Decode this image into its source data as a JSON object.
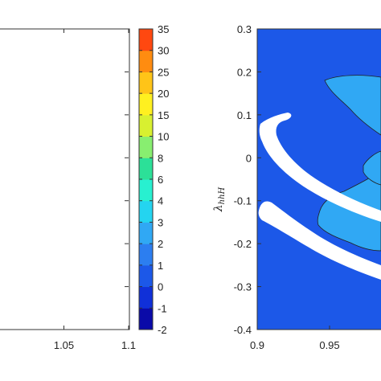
{
  "chart_data": [
    {
      "type": "heatmap",
      "panel": "left",
      "xlim": [
        1.0,
        1.1
      ],
      "x_ticks": [
        "1.05",
        "1.1"
      ],
      "x_tick_values": [
        1.05,
        1.1
      ],
      "grid": false,
      "colorbar": {
        "levels": [
          -2,
          -1,
          0,
          1,
          2,
          3,
          4,
          6,
          8,
          10,
          15,
          20,
          25,
          30,
          35
        ],
        "labels": [
          "-2",
          "-1",
          "0",
          "1",
          "2",
          "3",
          "4",
          "6",
          "8",
          "10",
          "15",
          "20",
          "25",
          "30",
          "35"
        ],
        "colors": [
          "#0a0aa8",
          "#1030d8",
          "#1c58e8",
          "#2c7ef0",
          "#30a8f4",
          "#24d4f0",
          "#28f0d0",
          "#2ce098",
          "#88ee70",
          "#d8f030",
          "#fff020",
          "#ffc418",
          "#ff8c10",
          "#ff4810",
          "#e81010",
          "#b00808"
        ]
      }
    },
    {
      "type": "heatmap",
      "panel": "right",
      "xlim": [
        0.9,
        1.0
      ],
      "ylim": [
        -0.4,
        0.3
      ],
      "x_ticks": [
        "0.9",
        "0.95"
      ],
      "x_tick_values": [
        0.9,
        0.95
      ],
      "y_ticks": [
        "-0.4",
        "-0.3",
        "-0.2",
        "-0.1",
        "0",
        "0.1",
        "0.2",
        "0.3"
      ],
      "y_tick_values": [
        -0.4,
        -0.3,
        -0.2,
        -0.1,
        0,
        0.1,
        0.2,
        0.3
      ],
      "ylabel": "λhhH",
      "ylabel_main": "λ",
      "ylabel_sub": "hhH",
      "grid": false,
      "background_color": "#1c58e8",
      "region_colors": {
        "level_1_2": "#30a8f4",
        "excluded": "#ffffff"
      }
    }
  ]
}
